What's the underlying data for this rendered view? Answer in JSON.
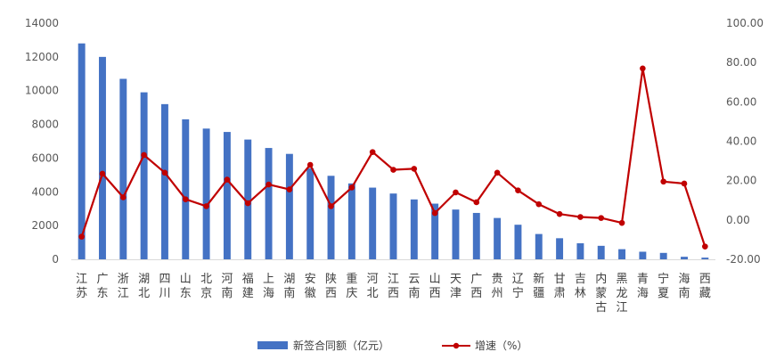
{
  "chart_data": {
    "type": "bar",
    "categories": [
      "江苏",
      "广东",
      "浙江",
      "湖北",
      "四川",
      "山东",
      "北京",
      "河南",
      "福建",
      "上海",
      "湖南",
      "安徽",
      "陕西",
      "重庆",
      "河北",
      "江西",
      "云南",
      "山西",
      "天津",
      "广西",
      "贵州",
      "辽宁",
      "新疆",
      "甘肃",
      "吉林",
      "内蒙古",
      "黑龙江",
      "青海",
      "宁夏",
      "海南",
      "西藏"
    ],
    "series": [
      {
        "name": "新签合同额（亿元）",
        "type": "bar",
        "axis": "left",
        "color": "#4472C4",
        "values": [
          12800,
          12000,
          10700,
          9900,
          9200,
          8300,
          7750,
          7550,
          7100,
          6600,
          6250,
          5400,
          4950,
          4500,
          4250,
          3900,
          3550,
          3300,
          2950,
          2750,
          2450,
          2050,
          1500,
          1250,
          950,
          800,
          600,
          450,
          380,
          150,
          100
        ]
      },
      {
        "name": "增速（%）",
        "type": "line",
        "axis": "right",
        "color": "#C00000",
        "values": [
          -8.5,
          23.5,
          11.5,
          33.0,
          24.0,
          10.5,
          7.0,
          20.5,
          8.5,
          18.0,
          15.5,
          28.0,
          7.0,
          16.5,
          34.5,
          25.5,
          26.0,
          3.5,
          14.0,
          9.0,
          24.0,
          15.0,
          8.0,
          3.0,
          1.5,
          1.0,
          -1.5,
          77.0,
          19.5,
          18.5,
          -13.5
        ]
      }
    ],
    "y_left": {
      "min": 0,
      "max": 14000,
      "step": 2000,
      "ticks": [
        "0",
        "2000",
        "4000",
        "6000",
        "8000",
        "10000",
        "12000",
        "14000"
      ]
    },
    "y_right": {
      "min": -20,
      "max": 100,
      "step": 20,
      "ticks": [
        "-20.00",
        "0.00",
        "20.00",
        "40.00",
        "60.00",
        "80.00",
        "100.00"
      ]
    },
    "title": "",
    "xlabel": "",
    "ylabel": "",
    "grid": false,
    "legend": "bottom"
  }
}
